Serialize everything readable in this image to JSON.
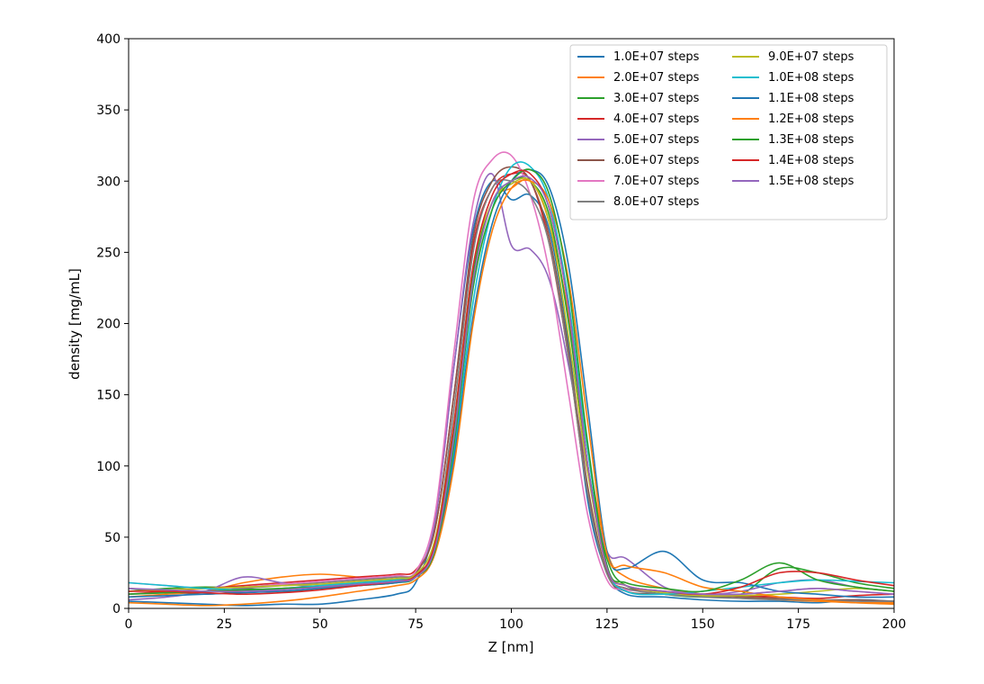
{
  "chart_data": {
    "type": "line",
    "title": "",
    "xlabel": "Z [nm]",
    "ylabel": "density [mg/mL]",
    "xlim": [
      0,
      200
    ],
    "ylim": [
      0,
      400
    ],
    "xticks": [
      0,
      25,
      50,
      75,
      100,
      125,
      150,
      175,
      200
    ],
    "yticks": [
      0,
      50,
      100,
      150,
      200,
      250,
      300,
      350,
      400
    ],
    "grid": false,
    "legend_position": "top-right",
    "legend_columns": 2,
    "x": [
      0,
      10,
      20,
      30,
      40,
      50,
      60,
      70,
      75,
      80,
      85,
      90,
      95,
      100,
      105,
      110,
      115,
      120,
      125,
      130,
      140,
      150,
      160,
      170,
      180,
      190,
      200
    ],
    "series": [
      {
        "name": "1.0E+07 steps",
        "color": "#1f77b4",
        "values": [
          5,
          4,
          3,
          2,
          3,
          3,
          6,
          10,
          18,
          60,
          170,
          265,
          300,
          287,
          290,
          265,
          185,
          75,
          25,
          10,
          8,
          6,
          5,
          5,
          4,
          6,
          5
        ]
      },
      {
        "name": "2.0E+07 steps",
        "color": "#ff7f0e",
        "values": [
          8,
          10,
          12,
          18,
          22,
          24,
          22,
          20,
          23,
          40,
          120,
          230,
          285,
          295,
          300,
          270,
          205,
          110,
          40,
          22,
          14,
          10,
          8,
          6,
          5,
          4,
          4
        ]
      },
      {
        "name": "3.0E+07 steps",
        "color": "#2ca02c",
        "values": [
          12,
          14,
          15,
          14,
          12,
          14,
          16,
          18,
          22,
          45,
          125,
          235,
          285,
          300,
          300,
          275,
          200,
          100,
          35,
          16,
          10,
          8,
          10,
          28,
          25,
          18,
          14
        ]
      },
      {
        "name": "4.0E+07 steps",
        "color": "#d62728",
        "values": [
          10,
          12,
          14,
          16,
          18,
          20,
          22,
          24,
          27,
          55,
          150,
          255,
          295,
          305,
          300,
          255,
          175,
          80,
          25,
          14,
          12,
          10,
          9,
          8,
          7,
          9,
          10
        ]
      },
      {
        "name": "5.0E+07 steps",
        "color": "#9467bd",
        "values": [
          6,
          8,
          12,
          22,
          18,
          15,
          18,
          20,
          24,
          60,
          170,
          270,
          305,
          255,
          252,
          230,
          170,
          95,
          40,
          35,
          15,
          10,
          12,
          18,
          20,
          15,
          12
        ]
      },
      {
        "name": "6.0E+07 steps",
        "color": "#8c564b",
        "values": [
          14,
          12,
          10,
          12,
          14,
          16,
          18,
          20,
          25,
          55,
          150,
          260,
          300,
          310,
          300,
          260,
          180,
          85,
          25,
          12,
          10,
          9,
          8,
          7,
          6,
          6,
          5
        ]
      },
      {
        "name": "7.0E+07 steps",
        "color": "#e377c2",
        "values": [
          18,
          16,
          14,
          15,
          17,
          19,
          21,
          23,
          26,
          65,
          180,
          285,
          315,
          318,
          290,
          235,
          150,
          65,
          20,
          13,
          12,
          10,
          10,
          12,
          14,
          12,
          10
        ]
      },
      {
        "name": "8.0E+07 steps",
        "color": "#7f7f7f",
        "values": [
          10,
          11,
          12,
          14,
          16,
          18,
          20,
          22,
          24,
          45,
          140,
          250,
          295,
          300,
          290,
          255,
          175,
          80,
          24,
          14,
          10,
          8,
          7,
          6,
          6,
          5,
          5
        ]
      },
      {
        "name": "9.0E+07 steps",
        "color": "#bcbd22",
        "values": [
          12,
          13,
          14,
          15,
          16,
          17,
          19,
          21,
          24,
          48,
          130,
          240,
          285,
          298,
          300,
          270,
          190,
          95,
          28,
          16,
          11,
          9,
          9,
          10,
          12,
          14,
          12
        ]
      },
      {
        "name": "1.0E+08 steps",
        "color": "#17becf",
        "values": [
          18,
          16,
          14,
          13,
          14,
          16,
          18,
          20,
          22,
          40,
          110,
          215,
          280,
          310,
          310,
          285,
          215,
          110,
          30,
          12,
          10,
          12,
          15,
          18,
          20,
          19,
          18
        ]
      },
      {
        "name": "1.1E+08 steps",
        "color": "#1f77b4",
        "values": [
          8,
          9,
          10,
          11,
          12,
          14,
          16,
          18,
          22,
          40,
          105,
          205,
          270,
          300,
          308,
          295,
          240,
          140,
          40,
          28,
          40,
          20,
          18,
          12,
          10,
          8,
          8
        ]
      },
      {
        "name": "1.2E+08 steps",
        "color": "#ff7f0e",
        "values": [
          4,
          3,
          2,
          3,
          5,
          8,
          12,
          16,
          20,
          38,
          100,
          200,
          265,
          295,
          300,
          285,
          230,
          130,
          38,
          30,
          25,
          15,
          12,
          8,
          6,
          4,
          3
        ]
      },
      {
        "name": "1.3E+08 steps",
        "color": "#2ca02c",
        "values": [
          10,
          11,
          12,
          13,
          14,
          15,
          17,
          19,
          22,
          40,
          115,
          225,
          280,
          300,
          308,
          290,
          225,
          115,
          30,
          18,
          14,
          12,
          20,
          32,
          20,
          15,
          12
        ]
      },
      {
        "name": "1.4E+08 steps",
        "color": "#d62728",
        "values": [
          12,
          12,
          11,
          10,
          11,
          13,
          16,
          19,
          23,
          45,
          130,
          240,
          290,
          305,
          305,
          280,
          210,
          100,
          28,
          16,
          12,
          10,
          15,
          25,
          25,
          20,
          16
        ]
      },
      {
        "name": "1.5E+08 steps",
        "color": "#9467bd",
        "values": [
          14,
          13,
          12,
          12,
          13,
          15,
          17,
          19,
          22,
          42,
          120,
          230,
          285,
          300,
          302,
          280,
          210,
          100,
          28,
          16,
          12,
          10,
          10,
          12,
          14,
          12,
          10
        ]
      }
    ]
  }
}
